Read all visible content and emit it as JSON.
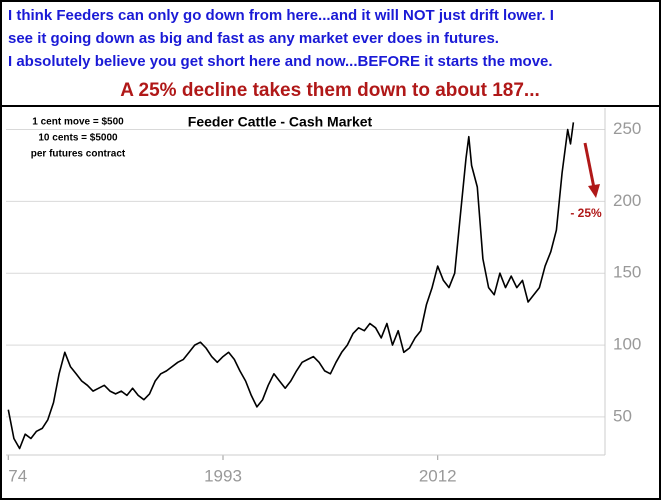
{
  "header": {
    "lines": [
      "I think Feeders can only go down from here...and it will NOT just drift lower. I",
      "see it going down as big and fast as any market ever does in futures.",
      "I absolutely believe you get short here and now...BEFORE it starts the move."
    ],
    "headline": "A 25% decline takes them down to about 187..."
  },
  "chart_data": {
    "type": "line",
    "title": "Feeder Cattle - Cash Market",
    "annotations": [
      "1 cent move = $500",
      "10 cents = $5000",
      "per futures contract",
      "- 25%"
    ],
    "x": [
      1974,
      1974.5,
      1975,
      1975.5,
      1976,
      1976.5,
      1977,
      1977.5,
      1978,
      1978.5,
      1979,
      1979.5,
      1980,
      1980.5,
      1981,
      1981.5,
      1982,
      1982.5,
      1983,
      1983.5,
      1984,
      1984.5,
      1985,
      1985.5,
      1986,
      1986.5,
      1987,
      1987.5,
      1988,
      1988.5,
      1989,
      1989.5,
      1990,
      1990.5,
      1991,
      1991.5,
      1992,
      1992.5,
      1993,
      1993.5,
      1994,
      1994.5,
      1995,
      1995.5,
      1996,
      1996.5,
      1997,
      1997.5,
      1998,
      1998.5,
      1999,
      1999.5,
      2000,
      2000.5,
      2001,
      2001.5,
      2002,
      2002.5,
      2003,
      2003.5,
      2004,
      2004.5,
      2005,
      2005.5,
      2006,
      2006.5,
      2007,
      2007.5,
      2008,
      2008.5,
      2009,
      2009.5,
      2010,
      2010.5,
      2011,
      2011.5,
      2012,
      2012.5,
      2013,
      2013.5,
      2014,
      2014.5,
      2014.75,
      2015,
      2015.5,
      2016,
      2016.5,
      2017,
      2017.5,
      2018,
      2018.5,
      2019,
      2019.5,
      2020,
      2020.5,
      2021,
      2021.5,
      2022,
      2022.5,
      2023,
      2023.5,
      2023.75,
      2024
    ],
    "series": [
      {
        "color": "#000000",
        "values": [
          55,
          35,
          28,
          38,
          35,
          40,
          42,
          48,
          60,
          80,
          95,
          85,
          80,
          75,
          72,
          68,
          70,
          72,
          68,
          66,
          68,
          65,
          70,
          65,
          62,
          66,
          75,
          80,
          82,
          85,
          88,
          90,
          95,
          100,
          102,
          98,
          92,
          88,
          92,
          95,
          90,
          82,
          75,
          65,
          57,
          62,
          72,
          80,
          75,
          70,
          75,
          82,
          88,
          90,
          92,
          88,
          82,
          80,
          88,
          95,
          100,
          108,
          112,
          110,
          115,
          112,
          105,
          115,
          100,
          110,
          95,
          98,
          105,
          110,
          128,
          140,
          155,
          145,
          140,
          150,
          190,
          230,
          245,
          225,
          210,
          160,
          140,
          135,
          150,
          140,
          148,
          140,
          145,
          130,
          135,
          140,
          155,
          165,
          180,
          220,
          250,
          240,
          255
        ]
      }
    ],
    "xlim": [
      1973.8,
      2026.8
    ],
    "ylim": [
      23.5,
      265
    ],
    "xticks": [
      {
        "value": 1974,
        "label": "74"
      },
      1993,
      2012
    ],
    "yticks": [
      50,
      100,
      150,
      200,
      250
    ],
    "grid": true
  }
}
